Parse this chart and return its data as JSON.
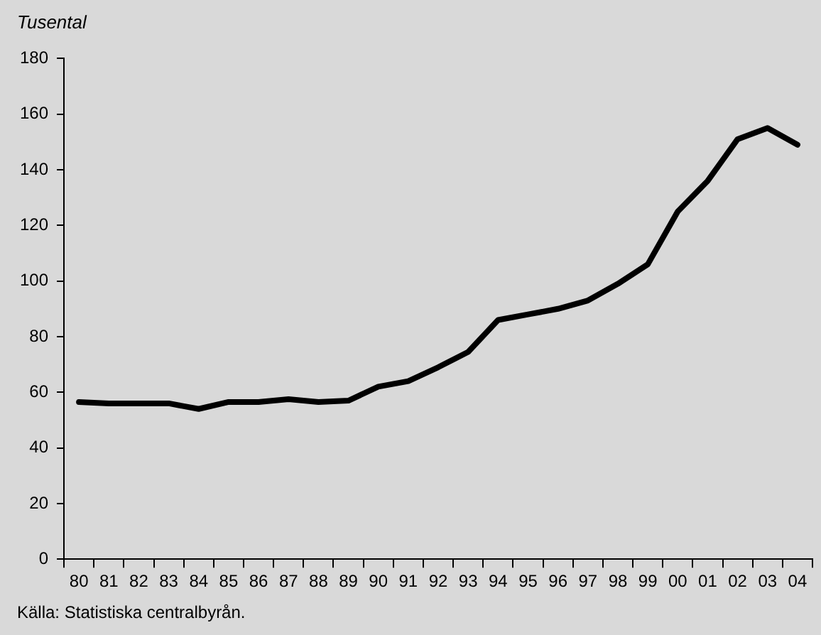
{
  "chart_data": {
    "type": "line",
    "ylabel": "Tusental",
    "annotations": [
      "Källa: Statistiska centralbyrån."
    ],
    "categories": [
      "80",
      "81",
      "82",
      "83",
      "84",
      "85",
      "86",
      "87",
      "88",
      "89",
      "90",
      "91",
      "92",
      "93",
      "94",
      "95",
      "96",
      "97",
      "98",
      "99",
      "00",
      "01",
      "02",
      "03",
      "04"
    ],
    "series": [
      {
        "color": "#000000",
        "values": [
          56.5,
          56,
          56,
          56,
          54,
          56.5,
          56.5,
          57.5,
          56.5,
          57,
          62,
          64,
          69,
          74.5,
          86,
          88,
          90,
          93,
          99,
          106,
          125,
          136,
          151,
          155,
          149
        ]
      }
    ],
    "ylim": [
      0,
      180
    ],
    "yticks": [
      0,
      20,
      40,
      60,
      80,
      100,
      120,
      140,
      160,
      180
    ],
    "grid": false,
    "legend": false,
    "marker": "none",
    "line_style": "solid"
  }
}
